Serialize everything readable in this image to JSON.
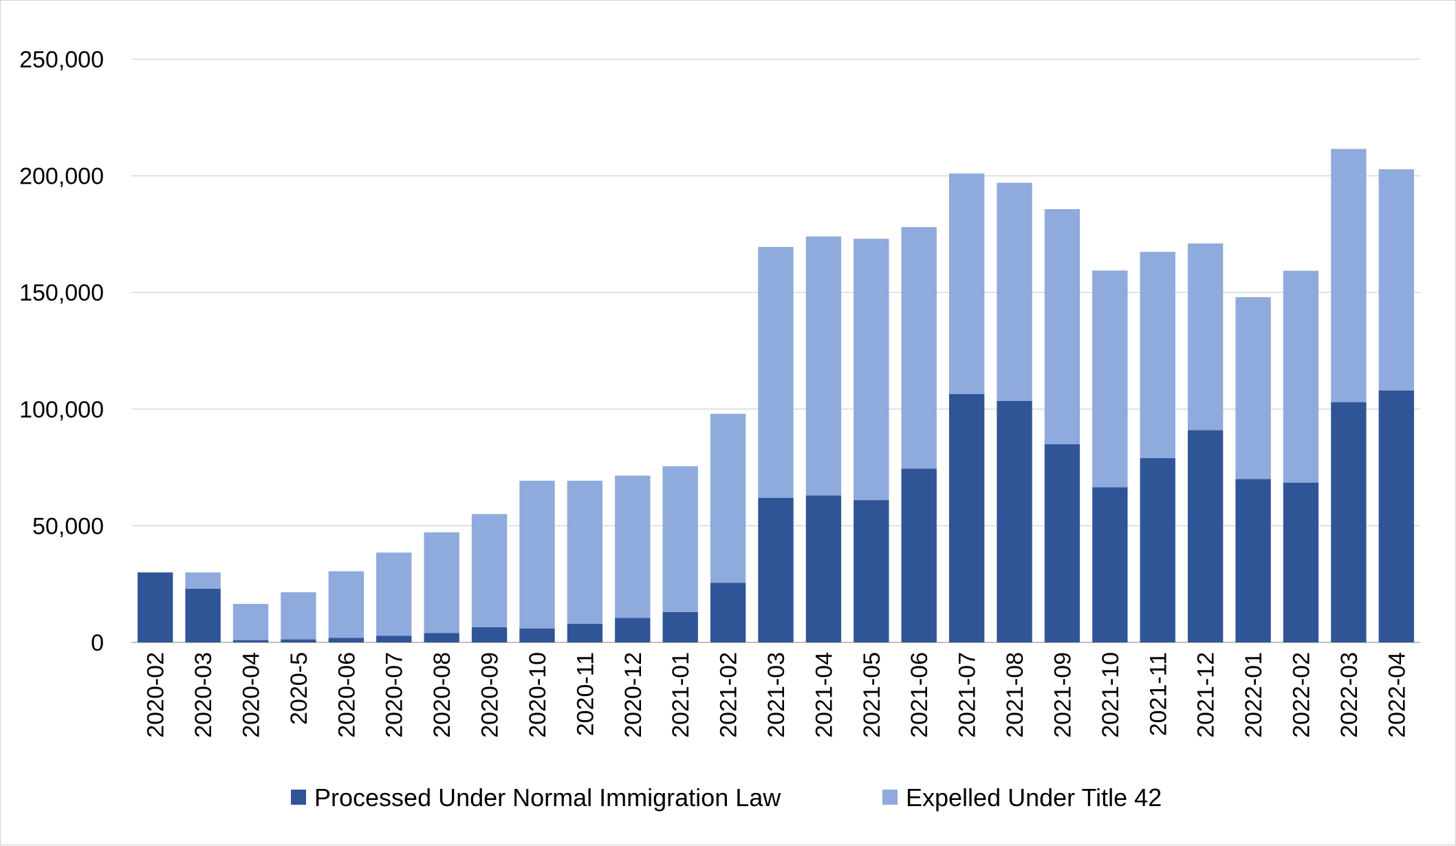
{
  "chart_data": {
    "type": "bar",
    "stacked": true,
    "title": "",
    "xlabel": "",
    "ylabel": "",
    "ylim": [
      0,
      250000
    ],
    "yticks": [
      0,
      50000,
      100000,
      150000,
      200000,
      250000
    ],
    "ytick_labels": [
      "0",
      "50,000",
      "100,000",
      "150,000",
      "200,000",
      "250,000"
    ],
    "grid": true,
    "legend_position": "bottom",
    "categories": [
      "2020-02",
      "2020-03",
      "2020-04",
      "2020-5",
      "2020-06",
      "2020-07",
      "2020-08",
      "2020-09",
      "2020-10",
      "2020-11",
      "2020-12",
      "2021-01",
      "2021-02",
      "2021-03",
      "2021-04",
      "2021-05",
      "2021-06",
      "2021-07",
      "2021-08",
      "2021-09",
      "2021-10",
      "2021-11",
      "2021-12",
      "2022-01",
      "2022-02",
      "2022-03",
      "2022-04"
    ],
    "series": [
      {
        "name": "Processed Under Normal Immigration Law",
        "color": "#2f5597",
        "values": [
          30000,
          23000,
          1000,
          1300,
          2000,
          2800,
          4000,
          6500,
          6000,
          8000,
          10500,
          13000,
          25500,
          62000,
          63000,
          61000,
          74500,
          106500,
          103500,
          85000,
          66500,
          79000,
          91000,
          70000,
          68500,
          103000,
          108000
        ]
      },
      {
        "name": "Expelled Under Title 42",
        "color": "#8faadc",
        "values": [
          0,
          7000,
          15500,
          20200,
          28500,
          35700,
          43200,
          48500,
          63300,
          61300,
          61000,
          62500,
          72500,
          107500,
          111000,
          112000,
          103500,
          94500,
          93500,
          100700,
          92900,
          88400,
          80000,
          78000,
          90800,
          108500,
          94800
        ]
      }
    ]
  }
}
